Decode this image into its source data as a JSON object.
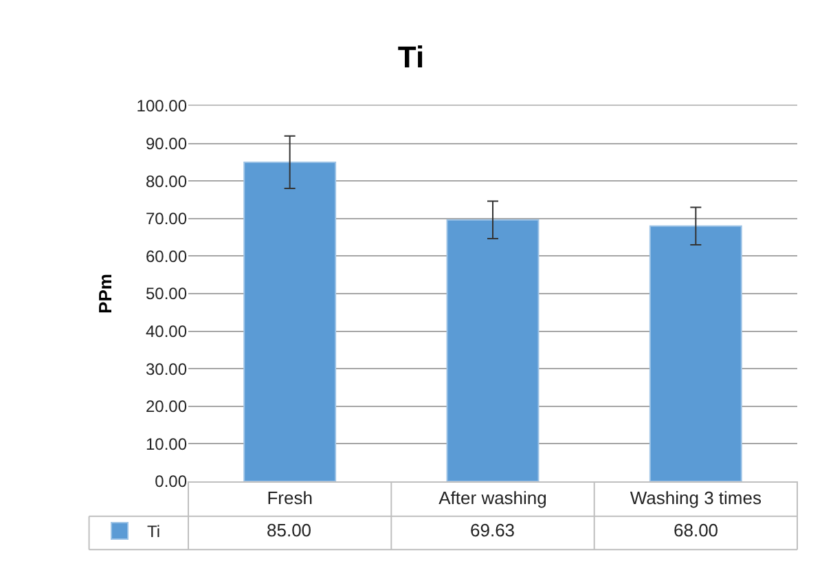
{
  "chart_data": {
    "type": "bar",
    "title": "Ti",
    "ylabel": "PPm",
    "categories": [
      "Fresh",
      "After washing",
      "Washing 3 times"
    ],
    "series": [
      {
        "name": "Ti",
        "color": "#5b9bd5",
        "values": [
          85.0,
          69.63,
          68.0
        ],
        "errors": [
          7,
          5,
          5
        ]
      }
    ],
    "ylim": [
      0,
      100
    ],
    "yticks": [
      {
        "value": 0,
        "label": "0.00"
      },
      {
        "value": 10,
        "label": "10.00"
      },
      {
        "value": 20,
        "label": "20.00"
      },
      {
        "value": 30,
        "label": "30.00"
      },
      {
        "value": 40,
        "label": "40.00"
      },
      {
        "value": 50,
        "label": "50.00"
      },
      {
        "value": 60,
        "label": "60.00"
      },
      {
        "value": 70,
        "label": "70.00"
      },
      {
        "value": 80,
        "label": "80.00"
      },
      {
        "value": 90,
        "label": "90.00"
      },
      {
        "value": 100,
        "label": "100.00"
      }
    ],
    "value_labels": [
      "85.00",
      "69.63",
      "68.00"
    ],
    "grid": "y",
    "legend": "bottom left"
  }
}
